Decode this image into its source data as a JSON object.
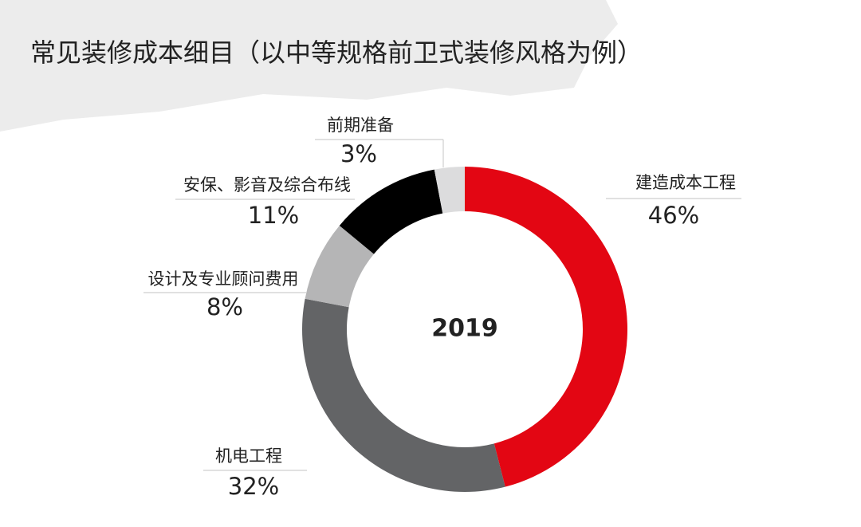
{
  "chart_data": {
    "type": "donut",
    "title": "常见装修成本细目（以中等规格前卫式装修风格为例）",
    "center_label": "2019",
    "categories": [
      "建造成本工程",
      "机电工程",
      "设计及专业顾问费用",
      "安保、影音及综合布线",
      "前期准备"
    ],
    "values": [
      46,
      32,
      8,
      11,
      3
    ],
    "value_labels": [
      "46%",
      "32%",
      "8%",
      "11%",
      "3%"
    ],
    "colors": [
      "#e30613",
      "#636466",
      "#b5b5b6",
      "#000000",
      "#dcdcdd"
    ]
  }
}
